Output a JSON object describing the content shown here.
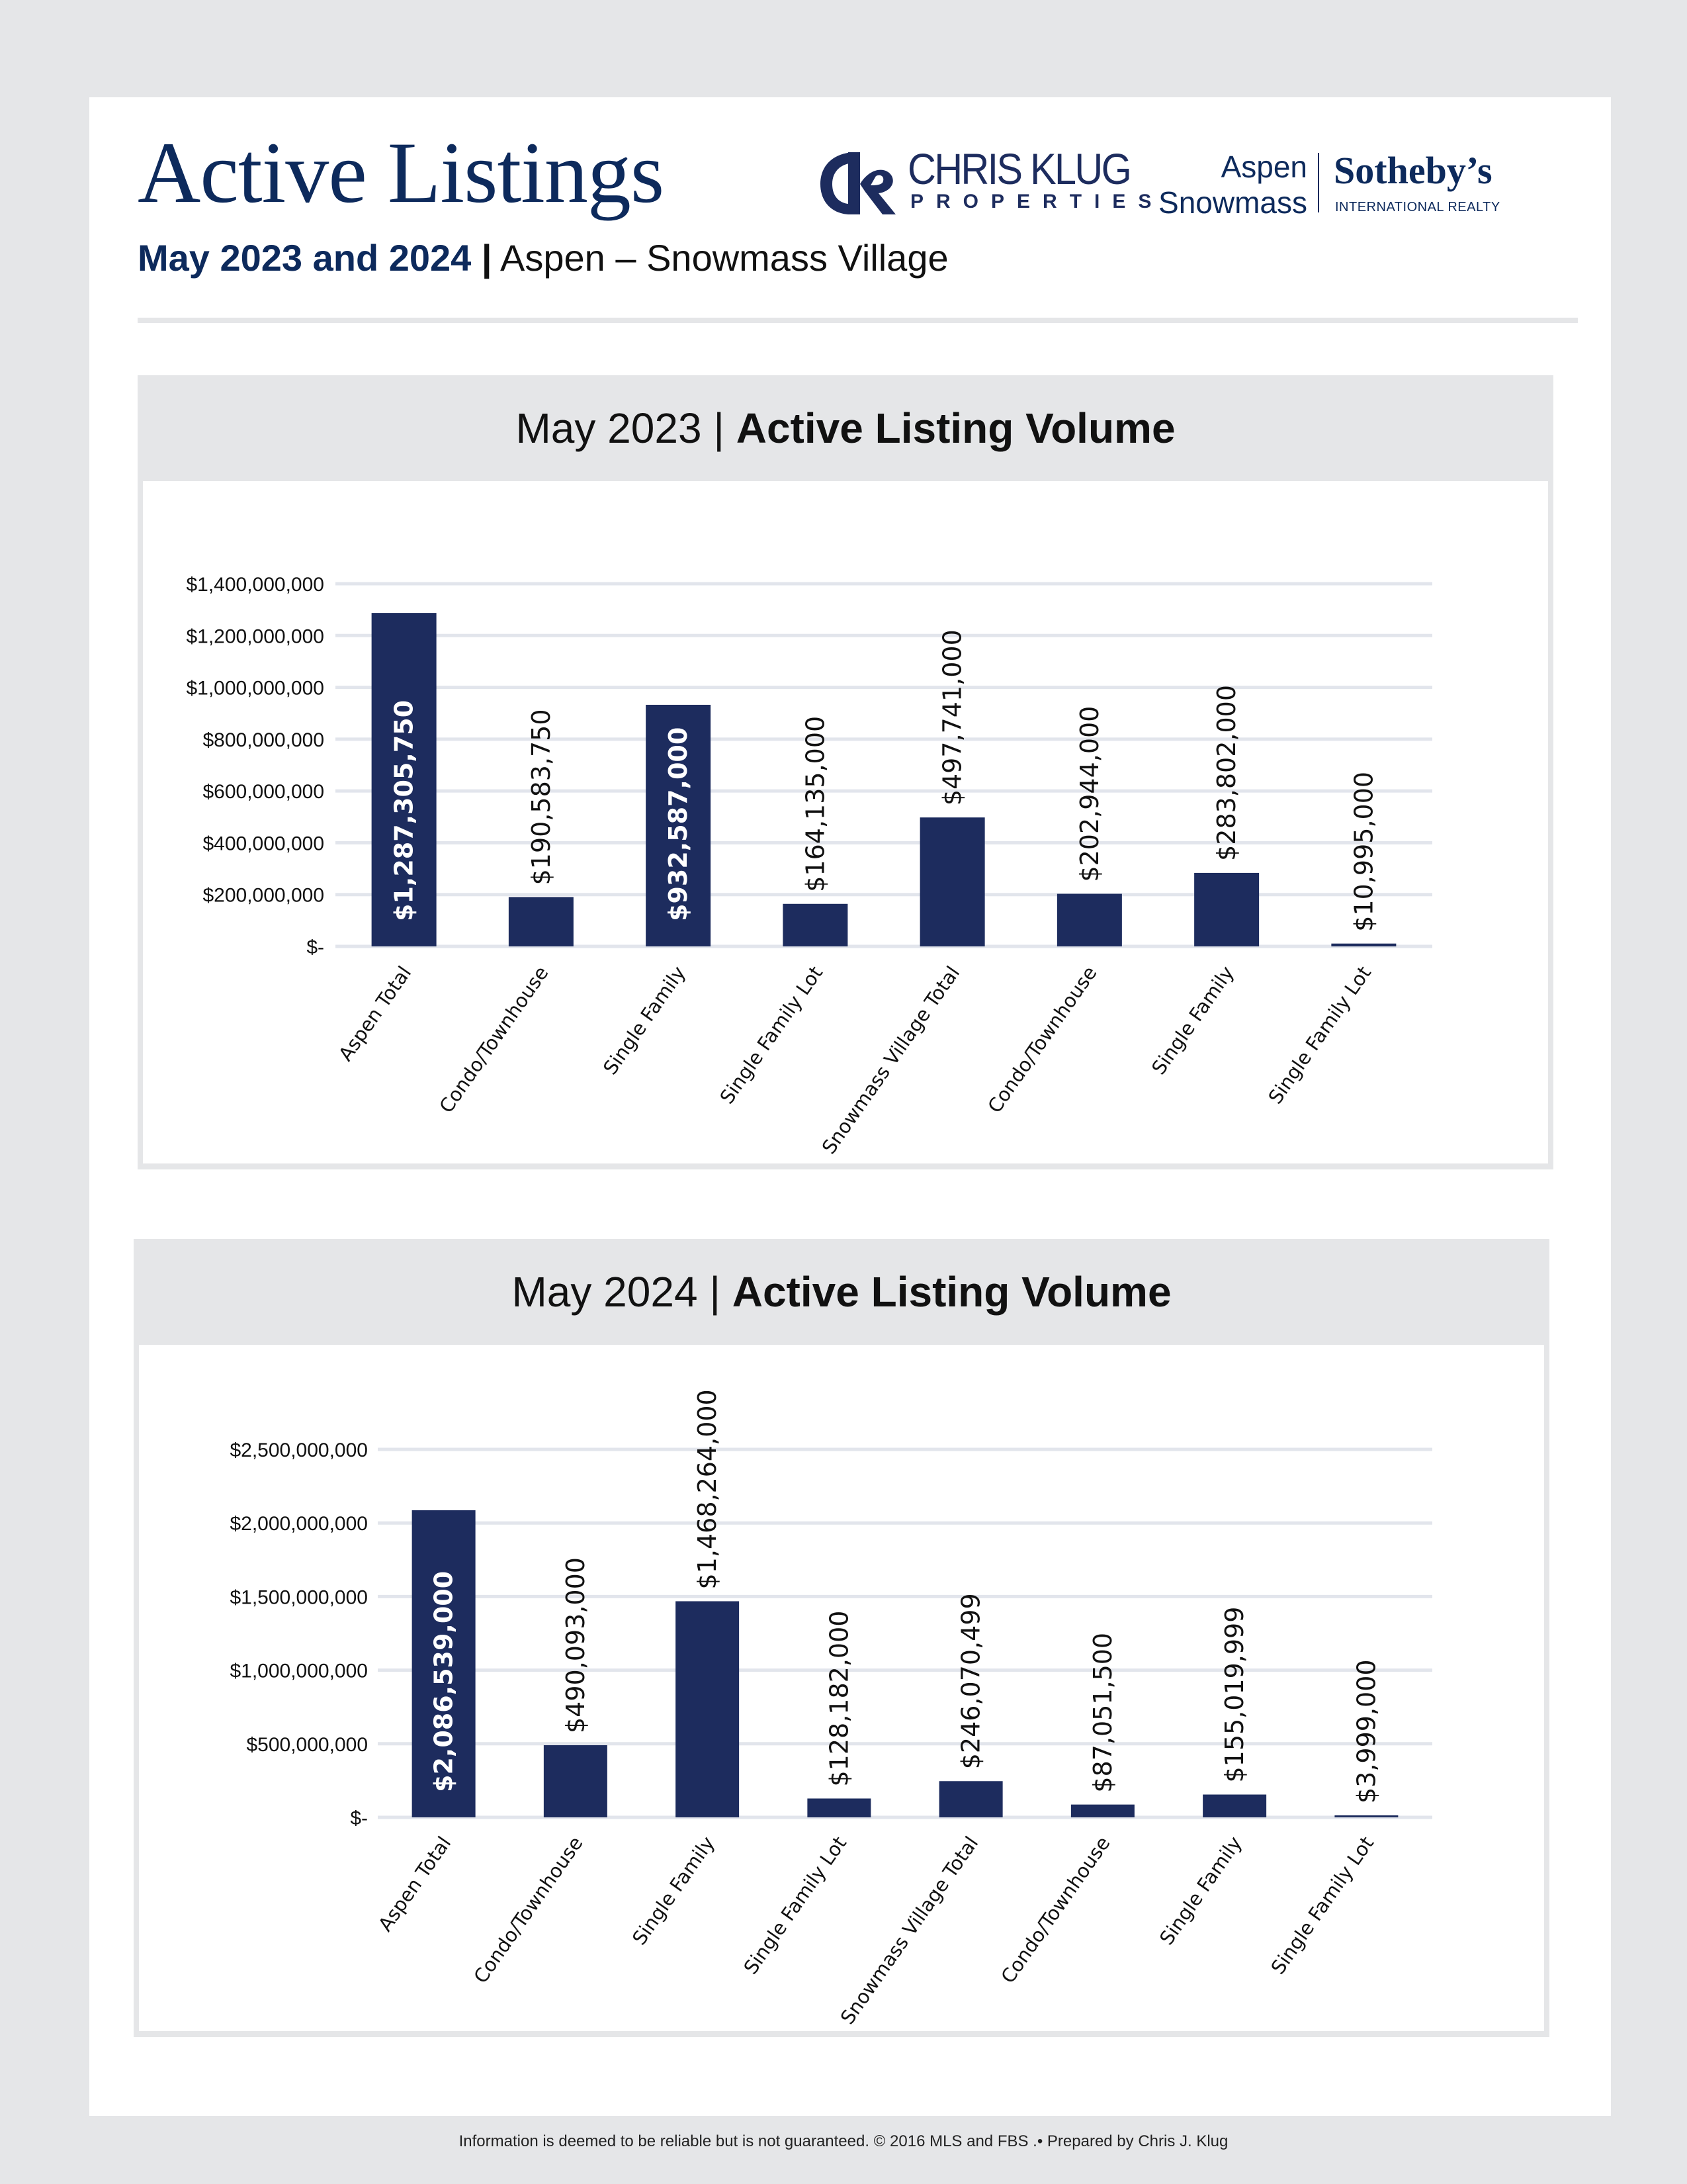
{
  "header": {
    "title": "Active Listings",
    "subtitle_bold": "May 2023 and 2024",
    "subtitle_separator": "|",
    "subtitle_location": "Aspen – Snowmass Village"
  },
  "logos": {
    "chris_klug": {
      "name": "CHRIS KLUG",
      "sub": "PROPERTIES",
      "monogram": "CK"
    },
    "sothebys": {
      "place_line1": "Aspen",
      "place_line2": "Snowmass",
      "name": "Sotheby’s",
      "sub": "INTERNATIONAL REALTY"
    }
  },
  "colors": {
    "navy": "#1d2c5e",
    "title_navy": "#0d2a5c",
    "panel_gray": "#e5e6e8",
    "gridline": "#e2e5ec"
  },
  "chart_data": [
    {
      "type": "bar",
      "title_light": "May 2023",
      "title_separator": "|",
      "title_bold": "Active Listing Volume",
      "xlabel": "",
      "ylabel": "",
      "ylim": [
        0,
        1400000000
      ],
      "grid": true,
      "legend": "none",
      "yticks": [
        0,
        200000000,
        400000000,
        600000000,
        800000000,
        1000000000,
        1200000000,
        1400000000
      ],
      "ytick_labels": [
        "$-",
        "$200,000,000",
        "$400,000,000",
        "$600,000,000",
        "$800,000,000",
        "$1,000,000,000",
        "$1,200,000,000",
        "$1,400,000,000"
      ],
      "categories": [
        "Aspen Total",
        "Condo/Townhouse",
        "Single Family",
        "Single Family Lot",
        "Snowmass Village Total",
        "Condo/Townhouse",
        "Single Family",
        "Single Family Lot"
      ],
      "values": [
        1287305750,
        190583750,
        932587000,
        164135000,
        497741000,
        202944000,
        283802000,
        10995000
      ],
      "data_labels": [
        "$1,287,305,750",
        "$190,583,750",
        "$932,587,000",
        "$164,135,000",
        "$497,741,000",
        "$202,944,000",
        "$283,802,000",
        "$10,995,000"
      ],
      "label_inside": [
        true,
        false,
        true,
        false,
        false,
        false,
        false,
        false
      ]
    },
    {
      "type": "bar",
      "title_light": "May 2024",
      "title_separator": "|",
      "title_bold": "Active Listing Volume",
      "xlabel": "",
      "ylabel": "",
      "ylim": [
        0,
        2500000000
      ],
      "grid": true,
      "legend": "none",
      "yticks": [
        0,
        500000000,
        1000000000,
        1500000000,
        2000000000,
        2500000000
      ],
      "ytick_labels": [
        "$-",
        "$500,000,000",
        "$1,000,000,000",
        "$1,500,000,000",
        "$2,000,000,000",
        "$2,500,000,000"
      ],
      "categories": [
        "Aspen Total",
        "Condo/Townhouse",
        "Single Family",
        "Single Family Lot",
        "Snowmass Village Total",
        "Condo/Townhouse",
        "Single Family",
        "Single Family Lot"
      ],
      "values": [
        2086539000,
        490093000,
        1468264000,
        128182000,
        246070499,
        87051500,
        155019999,
        3999000
      ],
      "data_labels": [
        "$2,086,539,000",
        "$490,093,000",
        "$1,468,264,000",
        "$128,182,000",
        "$246,070,499",
        "$87,051,500",
        "$155,019,999",
        "$3,999,000"
      ],
      "label_inside": [
        true,
        false,
        false,
        false,
        false,
        false,
        false,
        false
      ]
    }
  ],
  "footer": {
    "text": "Information is deemed to be reliable but is not guaranteed. © 2016 MLS and FBS .• Prepared by Chris J. Klug"
  }
}
